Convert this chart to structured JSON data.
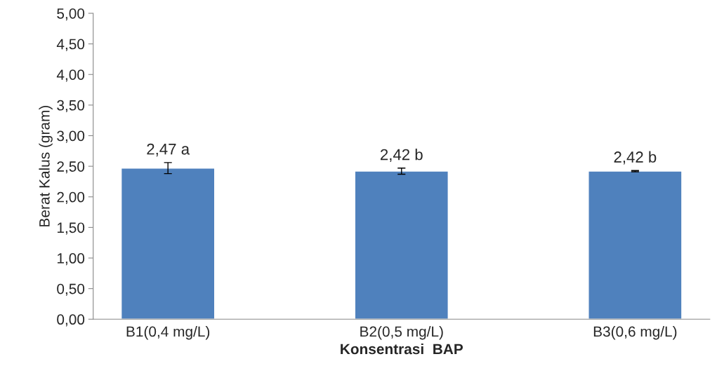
{
  "chart_data": {
    "type": "bar",
    "xlabel": "Konsentrasi  BAP",
    "ylabel": "Berat Kalus (gram)",
    "categories": [
      "B1(0,4 mg/L)",
      "B2(0,5 mg/L)",
      "B3(0,6 mg/L)"
    ],
    "values": [
      2.47,
      2.42,
      2.42
    ],
    "errors": [
      0.09,
      0.05,
      0.01
    ],
    "value_labels": [
      "2,47 a",
      "2,42 b",
      "2,42 b"
    ],
    "color": "#4f81bd",
    "ylim": [
      0,
      5
    ],
    "yticks": [
      {
        "value": 0,
        "label": "0,00"
      },
      {
        "value": 0.5,
        "label": "0,50"
      },
      {
        "value": 1,
        "label": "1,00"
      },
      {
        "value": 1.5,
        "label": "1,50"
      },
      {
        "value": 2,
        "label": "2,00"
      },
      {
        "value": 2.5,
        "label": "2,50"
      },
      {
        "value": 3,
        "label": "3,00"
      },
      {
        "value": 3.5,
        "label": "3,50"
      },
      {
        "value": 4,
        "label": "4,00"
      },
      {
        "value": 4.5,
        "label": "4,50"
      },
      {
        "value": 5,
        "label": "5,00"
      }
    ],
    "grid": false,
    "legend": false
  }
}
